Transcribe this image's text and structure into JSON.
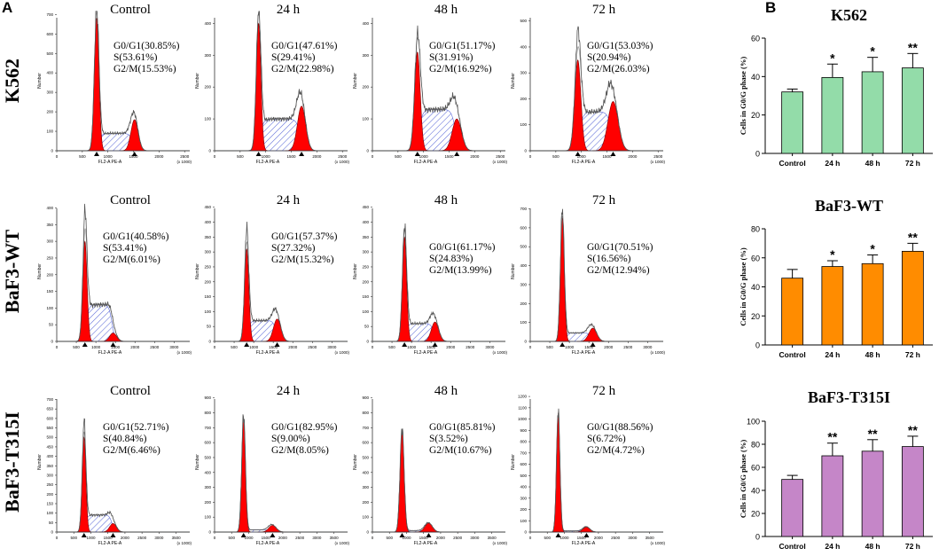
{
  "panel_labels": {
    "a": "A",
    "b": "B"
  },
  "chart_data": [
    {
      "type": "histogram-grid",
      "title": "Flow cytometry cell cycle histograms",
      "row_labels": [
        "K562",
        "BaF3-WT",
        "BaF3-T315I"
      ],
      "column_labels": [
        "Control",
        "24 h",
        "48 h",
        "72 h"
      ],
      "ylabel": "Number",
      "xlabel": "FL2-A PE-A",
      "x_scale_note": "(x 1000)",
      "rows": [
        {
          "row": "K562",
          "x_ticks": [
            "0",
            "500",
            "1000",
            "1500",
            "2000",
            "2500"
          ],
          "xlim": [
            0,
            2600
          ],
          "panels": [
            {
              "column": "Control",
              "y_ticks": [
                "0",
                "100",
                "200",
                "300",
                "400",
                "500",
                "600",
                "700"
              ],
              "ylim": [
                0,
                720
              ],
              "g1_label": "G0/G1(30.85%)",
              "s_label": "S(53.61%)",
              "g2m_label": "G2/M(15.53%)",
              "g1_peak": {
                "center": 780,
                "height": 680,
                "width": 45
              },
              "g2m_peak": {
                "center": 1520,
                "height": 160,
                "width": 70
              },
              "s_level": 90,
              "overlay_height": 710
            },
            {
              "column": "24 h",
              "y_ticks": [
                "0",
                "100",
                "200",
                "300",
                "400"
              ],
              "ylim": [
                0,
                440
              ],
              "g1_label": "G0/G1(47.61%)",
              "s_label": "S(29.41%)",
              "g2m_label": "G2/M(22.98%)",
              "g1_peak": {
                "center": 860,
                "height": 400,
                "width": 45
              },
              "g2m_peak": {
                "center": 1700,
                "height": 140,
                "width": 80
              },
              "s_level": 100,
              "overlay_height": 410
            },
            {
              "column": "48 h",
              "y_ticks": [
                "0",
                "100",
                "200",
                "300",
                "400"
              ],
              "ylim": [
                0,
                440
              ],
              "g1_label": "G0/G1(51.17%)",
              "s_label": "S(31.91%)",
              "g2m_label": "G2/M(16.92%)",
              "g1_peak": {
                "center": 880,
                "height": 310,
                "width": 55
              },
              "g2m_peak": {
                "center": 1650,
                "height": 100,
                "width": 90
              },
              "s_level": 130,
              "overlay_height": 325
            },
            {
              "column": "72 h",
              "y_ticks": [
                "0",
                "100",
                "200",
                "300",
                "400",
                "500"
              ],
              "ylim": [
                0,
                540
              ],
              "g1_label": "G0/G1(53.03%)",
              "s_label": "S(20.94%)",
              "g2m_label": "G2/M(26.03%)",
              "g1_peak": {
                "center": 930,
                "height": 350,
                "width": 60
              },
              "g2m_peak": {
                "center": 1620,
                "height": 190,
                "width": 100
              },
              "s_level": 150,
              "overlay_height": 420
            }
          ]
        },
        {
          "row": "BaF3-WT",
          "x_ticks": [
            "0",
            "500",
            "1000",
            "1500",
            "2000",
            "2500",
            "3000"
          ],
          "xlim": [
            0,
            3400
          ],
          "panels": [
            {
              "column": "Control",
              "y_ticks": [
                "0",
                "50",
                "100",
                "150",
                "200",
                "250",
                "300",
                "350",
                "400"
              ],
              "ylim": [
                0,
                420
              ],
              "g1_label": "G0/G1(40.58%)",
              "s_label": "S(53.41%)",
              "g2m_label": "G2/M(6.01%)",
              "g1_peak": {
                "center": 720,
                "height": 300,
                "width": 55
              },
              "g2m_peak": {
                "center": 1440,
                "height": 25,
                "width": 90
              },
              "s_level": 110,
              "overlay_height": 360
            },
            {
              "column": "24 h",
              "y_ticks": [
                "0",
                "50",
                "100",
                "150",
                "200",
                "250",
                "300",
                "350",
                "400",
                "450"
              ],
              "ylim": [
                0,
                470
              ],
              "g1_label": "G0/G1(57.37%)",
              "s_label": "S(27.32%)",
              "g2m_label": "G2/M(15.32%)",
              "g1_peak": {
                "center": 820,
                "height": 310,
                "width": 55
              },
              "g2m_peak": {
                "center": 1600,
                "height": 75,
                "width": 95
              },
              "s_level": 70,
              "overlay_height": 360
            },
            {
              "column": "48 h",
              "y_ticks": [
                "0",
                "50",
                "100",
                "150",
                "200",
                "250",
                "300",
                "350",
                "400",
                "450"
              ],
              "ylim": [
                0,
                470
              ],
              "g1_label": "G0/G1(61.17%)",
              "s_label": "S(24.83%)",
              "g2m_label": "G2/M(13.99%)",
              "g1_peak": {
                "center": 820,
                "height": 350,
                "width": 55
              },
              "g2m_peak": {
                "center": 1600,
                "height": 65,
                "width": 95
              },
              "s_level": 60,
              "overlay_height": 370
            },
            {
              "column": "72 h",
              "y_ticks": [
                "0",
                "100",
                "200",
                "300",
                "400",
                "500",
                "600",
                "700"
              ],
              "ylim": [
                0,
                740
              ],
              "g1_label": "G0/G1(70.51%)",
              "s_label": "S(16.56%)",
              "g2m_label": "G2/M(12.94%)",
              "g1_peak": {
                "center": 820,
                "height": 650,
                "width": 50
              },
              "g2m_peak": {
                "center": 1600,
                "height": 70,
                "width": 100
              },
              "s_level": 45,
              "overlay_height": 690
            }
          ]
        },
        {
          "row": "BaF3-T315I",
          "x_ticks": [
            "0",
            "500",
            "1000",
            "1500",
            "2000",
            "2500",
            "3000",
            "3500"
          ],
          "xlim": [
            0,
            3900
          ],
          "panels": [
            {
              "column": "Control",
              "y_ticks": [
                "0",
                "50",
                "100",
                "150",
                "200",
                "250",
                "300",
                "350",
                "400",
                "450",
                "500",
                "550",
                "600",
                "650",
                "700"
              ],
              "ylim": [
                0,
                740
              ],
              "g1_label": "G0/G1(52.71%)",
              "s_label": "S(40.84%)",
              "g2m_label": "G2/M(6.46%)",
              "g1_peak": {
                "center": 800,
                "height": 500,
                "width": 55
              },
              "g2m_peak": {
                "center": 1650,
                "height": 45,
                "width": 100
              },
              "s_level": 90,
              "overlay_height": 560
            },
            {
              "column": "24 h",
              "y_ticks": [
                "0",
                "100",
                "200",
                "300",
                "400",
                "500",
                "600",
                "700",
                "800",
                "900"
              ],
              "ylim": [
                0,
                940
              ],
              "g1_label": "G0/G1(82.95%)",
              "s_label": "S(9.00%)",
              "g2m_label": "G2/M(8.05%)",
              "g1_peak": {
                "center": 850,
                "height": 760,
                "width": 55
              },
              "g2m_peak": {
                "center": 1700,
                "height": 45,
                "width": 110
              },
              "s_level": 15,
              "overlay_height": 790
            },
            {
              "column": "48 h",
              "y_ticks": [
                "0",
                "100",
                "200",
                "300",
                "400",
                "500",
                "600",
                "700",
                "800",
                "900"
              ],
              "ylim": [
                0,
                940
              ],
              "g1_label": "G0/G1(85.81%)",
              "s_label": "S(3.52%)",
              "g2m_label": "G2/M(10.67%)",
              "g1_peak": {
                "center": 870,
                "height": 680,
                "width": 60
              },
              "g2m_peak": {
                "center": 1650,
                "height": 60,
                "width": 110
              },
              "s_level": 10,
              "overlay_height": 700
            },
            {
              "column": "72 h",
              "y_ticks": [
                "0",
                "100",
                "200",
                "300",
                "400",
                "500",
                "600",
                "700",
                "800",
                "900",
                "1000",
                "1100",
                "1200"
              ],
              "ylim": [
                0,
                1240
              ],
              "g1_label": "G0/G1(88.56%)",
              "s_label": "S(6.72%)",
              "g2m_label": "G2/M(4.72%)",
              "g1_peak": {
                "center": 820,
                "height": 1050,
                "width": 50
              },
              "g2m_peak": {
                "center": 1650,
                "height": 45,
                "width": 100
              },
              "s_level": 10,
              "overlay_height": 1080
            }
          ]
        }
      ]
    },
    {
      "type": "bar",
      "title": "K562",
      "ylabel": "Cells in G0/G phase (%)",
      "xlabel": "",
      "categories": [
        "Control",
        "24 h",
        "48 h",
        "72 h"
      ],
      "values": [
        32,
        39.5,
        42.5,
        44.5
      ],
      "errors": [
        1.5,
        7,
        7.5,
        7.5
      ],
      "significance": [
        "",
        "*",
        "*",
        "**"
      ],
      "ylim": [
        0,
        60
      ],
      "y_ticks": [
        "0",
        "20",
        "40",
        "60"
      ],
      "color": "#93dca9"
    },
    {
      "type": "bar",
      "title": "BaF3-WT",
      "ylabel": "Cells in G0/G phase (%)",
      "xlabel": "",
      "categories": [
        "Control",
        "24 h",
        "48 h",
        "72 h"
      ],
      "values": [
        46,
        54,
        56,
        64.5
      ],
      "errors": [
        6,
        4,
        6,
        5.5
      ],
      "significance": [
        "",
        "*",
        "*",
        "**"
      ],
      "ylim": [
        0,
        80
      ],
      "y_ticks": [
        "0",
        "20",
        "40",
        "60",
        "80"
      ],
      "color": "#ff8c00"
    },
    {
      "type": "bar",
      "title": "BaF3-T315I",
      "ylabel": "Cells in G0/G phase (%)",
      "xlabel": "",
      "categories": [
        "Control",
        "24 h",
        "48 h",
        "72 h"
      ],
      "values": [
        49.5,
        70,
        74,
        78
      ],
      "errors": [
        3.5,
        11,
        10,
        9
      ],
      "significance": [
        "",
        "**",
        "**",
        "**"
      ],
      "ylim": [
        0,
        100
      ],
      "y_ticks": [
        "0",
        "20",
        "40",
        "60",
        "80",
        "100"
      ],
      "color": "#c586c8"
    }
  ],
  "colors": {
    "red": "#ff0000",
    "hatch": "#5c6bd8",
    "line": "#555555",
    "axis": "#000000"
  }
}
